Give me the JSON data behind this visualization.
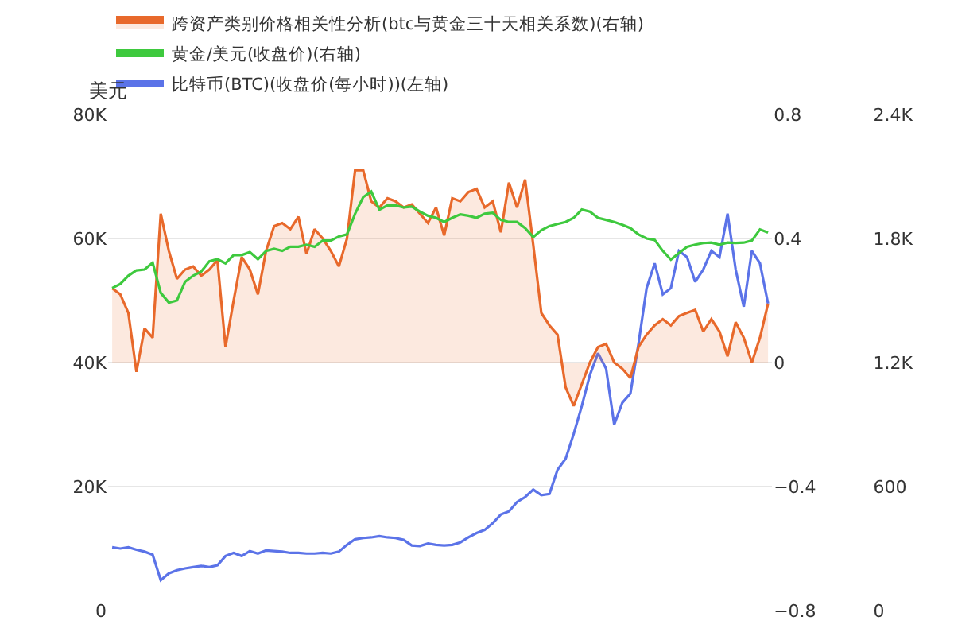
{
  "chart_data": {
    "type": "line",
    "ylabel": "美元",
    "categories": [
      null,
      null,
      null,
      null,
      null,
      null,
      null,
      null,
      null,
      null,
      null,
      null,
      null,
      null,
      null,
      null,
      null,
      null,
      null,
      null,
      null,
      null,
      null,
      null,
      null,
      null,
      null,
      null,
      null,
      null,
      null,
      null,
      null,
      null,
      null,
      null,
      null,
      null,
      null,
      null,
      null,
      null,
      null,
      null,
      null,
      null,
      null,
      null,
      null,
      null,
      null,
      null,
      null,
      null,
      null,
      null,
      null,
      null,
      null,
      null,
      null,
      null,
      null,
      null,
      null,
      null,
      null,
      null,
      null,
      null,
      null,
      null,
      null,
      null,
      null,
      null,
      null,
      null,
      null,
      null,
      null,
      null
    ],
    "series": [
      {
        "name": "跨资产类别价格相关性分析(btc与黄金三十天相关系数)(右轴)",
        "type": "area",
        "axis": "y2",
        "color": "#e8692b",
        "values": [
          0.24,
          0.22,
          0.16,
          -0.03,
          0.11,
          0.08,
          0.48,
          0.36,
          0.27,
          0.3,
          0.31,
          0.28,
          0.3,
          0.33,
          0.05,
          0.2,
          0.34,
          0.3,
          0.22,
          0.36,
          0.44,
          0.45,
          0.43,
          0.47,
          0.35,
          0.43,
          0.4,
          0.36,
          0.31,
          0.4,
          0.62,
          0.62,
          0.52,
          0.5,
          0.53,
          0.52,
          0.5,
          0.51,
          0.48,
          0.45,
          0.5,
          0.41,
          0.53,
          0.52,
          0.55,
          0.56,
          0.5,
          0.52,
          0.42,
          0.58,
          0.5,
          0.59,
          0.38,
          0.16,
          0.12,
          0.09,
          -0.08,
          -0.14,
          -0.07,
          0.0,
          0.05,
          0.06,
          0.0,
          -0.02,
          -0.05,
          0.05,
          0.09,
          0.12,
          0.14,
          0.12,
          0.15,
          0.16,
          0.17,
          0.1,
          0.14,
          0.1,
          0.02,
          0.13,
          0.08,
          0.0,
          0.08,
          0.19
        ]
      },
      {
        "name": "黄金/美元(收盘价)(右轴)",
        "type": "line",
        "axis": "y3",
        "color": "#3ec93e",
        "values": [
          1560,
          1580,
          1620,
          1646,
          1650,
          1683,
          1537,
          1490,
          1500,
          1590,
          1620,
          1640,
          1690,
          1700,
          1680,
          1720,
          1720,
          1734,
          1700,
          1740,
          1750,
          1740,
          1760,
          1760,
          1770,
          1760,
          1790,
          1790,
          1810,
          1820,
          1920,
          2000,
          2027,
          1939,
          1960,
          1960,
          1950,
          1954,
          1930,
          1910,
          1900,
          1880,
          1900,
          1917,
          1910,
          1900,
          1920,
          1924,
          1890,
          1880,
          1880,
          1850,
          1807,
          1840,
          1860,
          1870,
          1880,
          1900,
          1940,
          1930,
          1900,
          1890,
          1880,
          1866,
          1850,
          1820,
          1800,
          1793,
          1740,
          1698,
          1730,
          1760,
          1770,
          1778,
          1780,
          1770,
          1780,
          1778,
          1780,
          1790,
          1844,
          1829
        ]
      },
      {
        "name": "比特币(BTC)(收盘价(每小时))(左轴)",
        "color": "#5b73e8",
        "values": [
          10200,
          10000,
          10200,
          9800,
          9500,
          9000,
          4900,
          6000,
          6500,
          6800,
          7000,
          7200,
          7000,
          7300,
          8800,
          9300,
          8800,
          9600,
          9200,
          9700,
          9600,
          9500,
          9300,
          9300,
          9200,
          9200,
          9300,
          9200,
          9500,
          10600,
          11500,
          11700,
          11800,
          12000,
          11800,
          11700,
          11400,
          10500,
          10400,
          10800,
          10600,
          10500,
          10600,
          11000,
          11800,
          12500,
          13000,
          14100,
          15500,
          16000,
          17500,
          18300,
          19500,
          18600,
          18800,
          22700,
          24500,
          28500,
          33000,
          38000,
          41500,
          39000,
          30000,
          33500,
          35000,
          43000,
          52000,
          56000,
          51000,
          52000,
          58000,
          57000,
          53000,
          55000,
          58000,
          57000,
          64000,
          55000,
          49000,
          58000,
          56000,
          49500
        ]
      }
    ],
    "ylim": [
      0,
      80000
    ],
    "yticks": [
      0,
      {
        "value": 20000,
        "label": "20K"
      },
      {
        "value": 40000,
        "label": "40K"
      },
      {
        "value": 60000,
        "label": "60K"
      },
      {
        "value": 80000,
        "label": "80K"
      }
    ],
    "y2lim": [
      -0.8,
      0.8
    ],
    "y2ticks": [
      {
        "value": -0.8,
        "label": "−0.8"
      },
      {
        "value": -0.4,
        "label": "−0.4"
      },
      0,
      0.4,
      0.8
    ],
    "y3lim": [
      0,
      2400
    ],
    "y3ticks": [
      0,
      600,
      {
        "value": 1200,
        "label": "1.2K"
      },
      {
        "value": 1800,
        "label": "1.8K"
      },
      {
        "value": 2400,
        "label": "2.4K"
      }
    ],
    "grid": "y",
    "legend": "top left",
    "tick_labels": "y",
    "marker": "none",
    "line_style": "solid"
  }
}
